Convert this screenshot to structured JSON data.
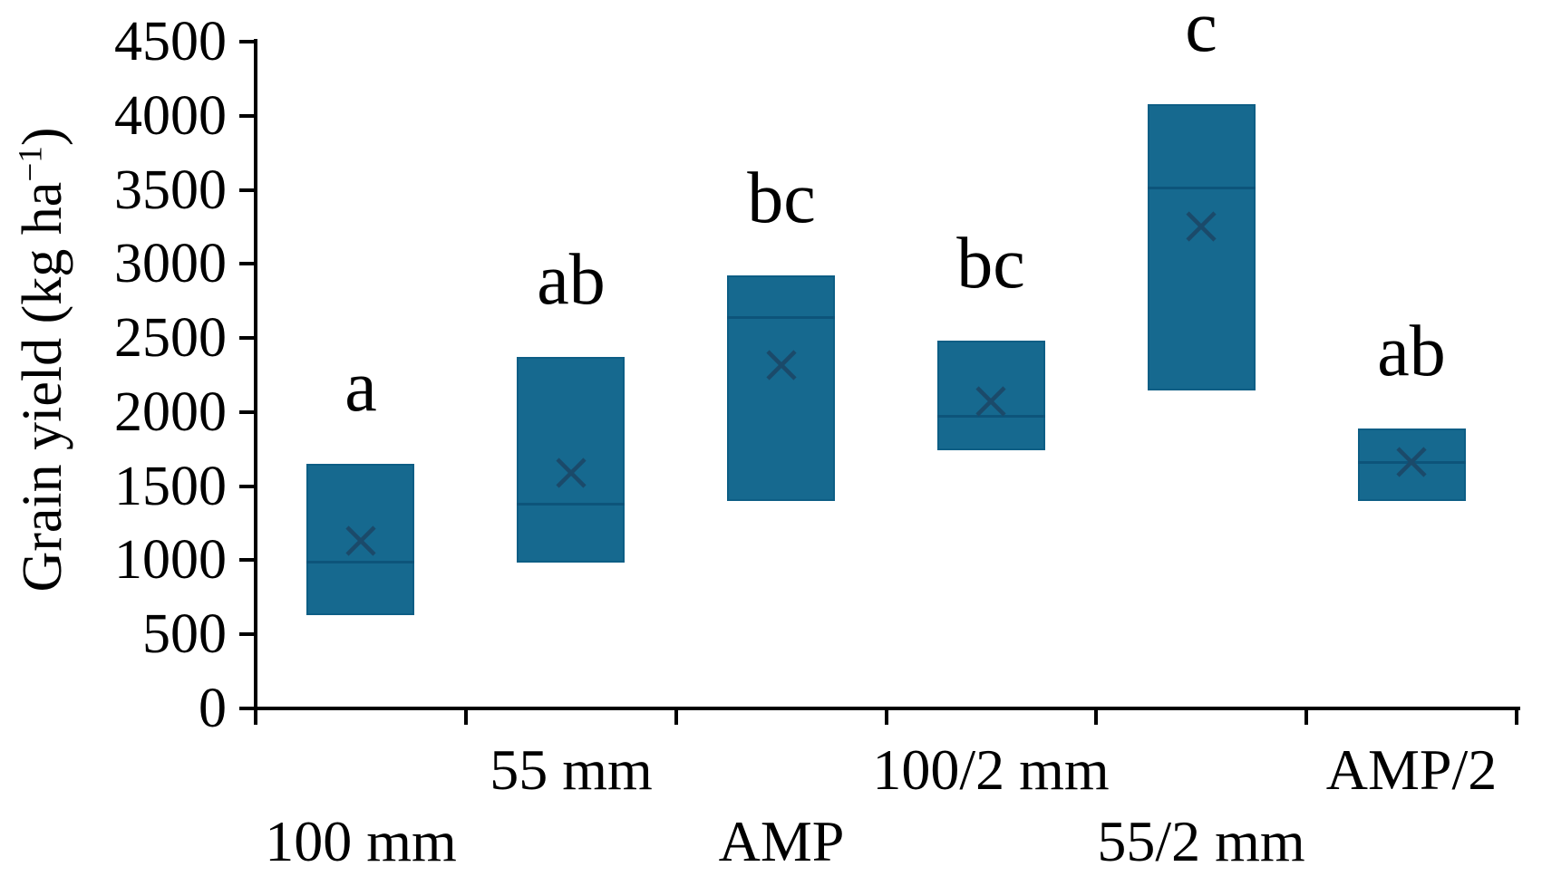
{
  "chart_data": {
    "type": "box",
    "title": "",
    "xlabel": "",
    "ylabel": "Grain yield (kg ha−1)",
    "ylabel_parts": {
      "prefix": "Grain yield (kg ha",
      "superscript": "−1",
      "suffix": ")"
    },
    "ylim": [
      0,
      4500
    ],
    "ytick_step": 500,
    "yticks": [
      0,
      500,
      1000,
      1500,
      2000,
      2500,
      3000,
      3500,
      4000,
      4500
    ],
    "grid": false,
    "legend": false,
    "categories": [
      "100 mm",
      "55 mm",
      "AMP",
      "100/2 mm",
      "55/2 mm",
      "AMP/2"
    ],
    "significance_letters": [
      "a",
      "ab",
      "bc",
      "bc",
      "c",
      "ab"
    ],
    "series": [
      {
        "category": "100 mm",
        "letter": "a",
        "box_low": 630,
        "box_high": 1650,
        "median": 990,
        "mean": 1130
      },
      {
        "category": "55 mm",
        "letter": "ab",
        "box_low": 980,
        "box_high": 2370,
        "median": 1380,
        "mean": 1590
      },
      {
        "category": "AMP",
        "letter": "bc",
        "box_low": 1400,
        "box_high": 2920,
        "median": 2640,
        "mean": 2320
      },
      {
        "category": "100/2 mm",
        "letter": "bc",
        "box_low": 1740,
        "box_high": 2480,
        "median": 1970,
        "mean": 2070
      },
      {
        "category": "55/2 mm",
        "letter": "c",
        "box_low": 2150,
        "box_high": 4080,
        "median": 3510,
        "mean": 3250
      },
      {
        "category": "AMP/2",
        "letter": "ab",
        "box_low": 1400,
        "box_high": 1890,
        "median": 1660,
        "mean": 1660
      }
    ],
    "colors": {
      "box_fill": "#16698f",
      "box_border": "#0d5e85",
      "median_line": "#0d547a",
      "mean_marker": "#1b4a6a",
      "axis": "#000000",
      "text": "#000000"
    }
  }
}
